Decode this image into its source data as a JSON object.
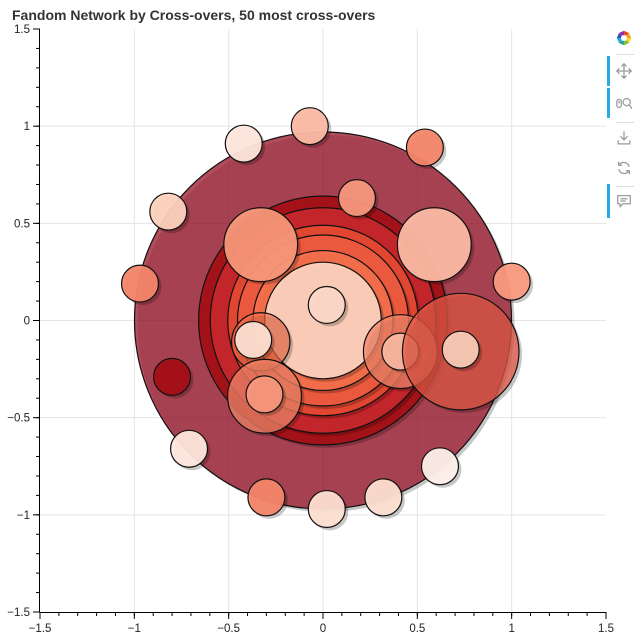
{
  "chart_data": {
    "type": "scatter",
    "title": "Fandom Network by Cross-overs, 50 most cross-overs",
    "xlim": [
      -1.5,
      1.5
    ],
    "ylim": [
      -1.5,
      1.5
    ],
    "x_ticks": [
      -1.5,
      -1,
      -0.5,
      0,
      0.5,
      1,
      1.5
    ],
    "y_ticks": [
      -1.5,
      -1,
      -0.5,
      0,
      0.5,
      1,
      1.5
    ],
    "x_tick_labels": [
      "−1.5",
      "−1",
      "−0.5",
      "0",
      "0.5",
      "1",
      "1.5"
    ],
    "y_tick_labels": [
      "−1.5",
      "−1",
      "−0.5",
      "0",
      "0.5",
      "1",
      "1.5"
    ],
    "grid": true,
    "circles": [
      {
        "x": 0.0,
        "y": 0.0,
        "r": 0.97,
        "color": "#9b1b30",
        "alpha": 0.78
      },
      {
        "x": 0.0,
        "y": 0.0,
        "r": 0.64,
        "color": "#a50f15",
        "alpha": 0.92
      },
      {
        "x": 0.0,
        "y": 0.0,
        "r": 0.58,
        "color": "#c8282d",
        "alpha": 0.92
      },
      {
        "x": 0.0,
        "y": 0.0,
        "r": 0.49,
        "color": "#e64a32",
        "alpha": 0.92
      },
      {
        "x": 0.0,
        "y": 0.0,
        "r": 0.44,
        "color": "#ef5b3f",
        "alpha": 0.92
      },
      {
        "x": 0.0,
        "y": 0.0,
        "r": 0.36,
        "color": "#f6704c",
        "alpha": 0.92
      },
      {
        "x": 0.0,
        "y": 0.0,
        "r": 0.3,
        "color": "#fcd2bd",
        "alpha": 0.95
      },
      {
        "x": 0.02,
        "y": 0.08,
        "r": 0.095,
        "color": "#fdd8c8",
        "alpha": 0.95
      },
      {
        "x": -0.33,
        "y": 0.39,
        "r": 0.19,
        "color": "#fb9a7c",
        "alpha": 0.92
      },
      {
        "x": 0.59,
        "y": 0.39,
        "r": 0.19,
        "color": "#fcbba4",
        "alpha": 0.95
      },
      {
        "x": 0.18,
        "y": 0.63,
        "r": 0.095,
        "color": "#fb9a80",
        "alpha": 0.92
      },
      {
        "x": -0.33,
        "y": -0.11,
        "r": 0.15,
        "color": "#f6704c",
        "alpha": 0.6
      },
      {
        "x": -0.37,
        "y": -0.1,
        "r": 0.095,
        "color": "#fde0d2",
        "alpha": 0.95
      },
      {
        "x": -0.31,
        "y": -0.39,
        "r": 0.19,
        "color": "#f4866a",
        "alpha": 0.75
      },
      {
        "x": -0.31,
        "y": -0.38,
        "r": 0.095,
        "color": "#fb9a80",
        "alpha": 0.9
      },
      {
        "x": 0.41,
        "y": -0.16,
        "r": 0.19,
        "color": "#f4866a",
        "alpha": 0.75
      },
      {
        "x": 0.41,
        "y": -0.16,
        "r": 0.095,
        "color": "#fcbba4",
        "alpha": 0.9
      },
      {
        "x": 0.73,
        "y": -0.16,
        "r": 0.3,
        "color": "#e35a47",
        "alpha": 0.75
      },
      {
        "x": 0.73,
        "y": -0.15,
        "r": 0.095,
        "color": "#fcd2bd",
        "alpha": 0.9
      },
      {
        "x": -0.42,
        "y": 0.91,
        "r": 0.095,
        "color": "#fee7dd",
        "alpha": 0.95
      },
      {
        "x": -0.07,
        "y": 1.0,
        "r": 0.095,
        "color": "#fcbba4",
        "alpha": 0.95
      },
      {
        "x": 0.54,
        "y": 0.89,
        "r": 0.095,
        "color": "#f4866a",
        "alpha": 0.95
      },
      {
        "x": -0.82,
        "y": 0.56,
        "r": 0.095,
        "color": "#fcd2bd",
        "alpha": 0.95
      },
      {
        "x": -0.97,
        "y": 0.19,
        "r": 0.095,
        "color": "#f4866a",
        "alpha": 0.95
      },
      {
        "x": 1.0,
        "y": 0.2,
        "r": 0.095,
        "color": "#fb9a80",
        "alpha": 0.95
      },
      {
        "x": -0.8,
        "y": -0.29,
        "r": 0.095,
        "color": "#a50f15",
        "alpha": 0.95
      },
      {
        "x": -0.71,
        "y": -0.66,
        "r": 0.095,
        "color": "#fee7dd",
        "alpha": 0.95
      },
      {
        "x": 0.62,
        "y": -0.75,
        "r": 0.095,
        "color": "#fef0ea",
        "alpha": 0.95
      },
      {
        "x": -0.3,
        "y": -0.91,
        "r": 0.095,
        "color": "#f4866a",
        "alpha": 0.95
      },
      {
        "x": 0.02,
        "y": -0.97,
        "r": 0.095,
        "color": "#fee0d2",
        "alpha": 0.95
      },
      {
        "x": 0.32,
        "y": -0.91,
        "r": 0.095,
        "color": "#fde0d2",
        "alpha": 0.95
      }
    ]
  },
  "toolbar": {
    "tools": [
      {
        "name": "bokeh-logo-icon",
        "active": false,
        "interactive": false
      },
      {
        "name": "pan-tool-icon",
        "active": true,
        "interactive": true
      },
      {
        "name": "wheel-zoom-tool-icon",
        "active": true,
        "interactive": true
      },
      {
        "name": "save-tool-icon",
        "active": false,
        "interactive": true
      },
      {
        "name": "reset-tool-icon",
        "active": false,
        "interactive": true
      },
      {
        "name": "hover-tool-icon",
        "active": true,
        "interactive": true
      }
    ],
    "accent_color": "#26aae1"
  }
}
